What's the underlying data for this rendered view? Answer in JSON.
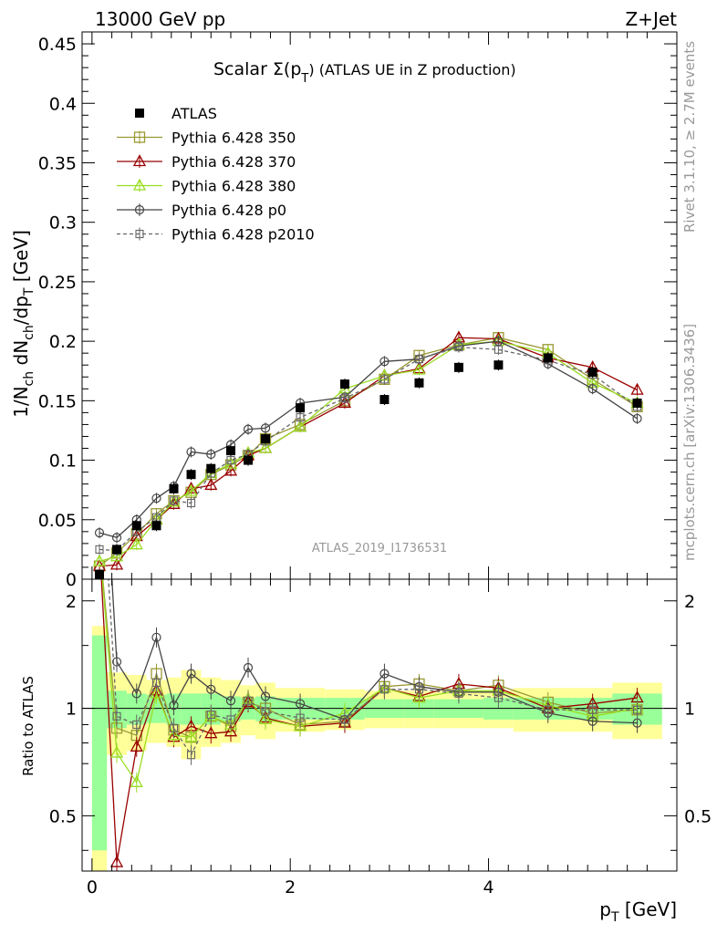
{
  "header": {
    "left": "13000 GeV pp",
    "right": "Z+Jet"
  },
  "side": {
    "rivet": "Rivet 3.1.10, ≥ 2.7M events",
    "mcplots": "mcplots.cern.ch [arXiv:1306.3436]"
  },
  "chart_data": [
    {
      "type": "scatter",
      "title_main": "Scalar Σ(p",
      "title_sub": "T",
      "title_rest": ") (ATLAS UE in Z production)",
      "ylabel": "1/N_ch dN_ch/dp_T [GeV]",
      "xlabel": "p_T [GeV]",
      "analysis_label": "ATLAS_2019_I1736531",
      "xlim": [
        -0.1,
        5.9
      ],
      "ylim": [
        0,
        0.46
      ],
      "yticks": [
        0,
        0.05,
        0.1,
        0.15,
        0.2,
        0.25,
        0.3,
        0.35,
        0.4,
        0.45
      ],
      "ytick_labels": [
        "0",
        "0.05",
        "0.1",
        "0.15",
        "0.2",
        "0.25",
        "0.3",
        "0.35",
        "0.4",
        "0.45"
      ],
      "x": [
        0.075,
        0.25,
        0.45,
        0.65,
        0.825,
        1.0,
        1.2,
        1.4,
        1.575,
        1.75,
        2.1,
        2.55,
        2.95,
        3.3,
        3.7,
        4.1,
        4.6,
        5.05,
        5.5
      ],
      "series": [
        {
          "name": "ATLAS",
          "color": "#000000",
          "marker": "square-filled",
          "line": "none",
          "values": [
            0.004,
            0.025,
            0.045,
            0.045,
            0.076,
            0.088,
            0.093,
            0.108,
            0.1,
            0.118,
            0.144,
            0.164,
            0.151,
            0.165,
            0.178,
            0.18,
            0.186,
            0.174,
            0.148
          ]
        },
        {
          "name": "Pythia 6.428 350",
          "color": "#999933",
          "marker": "square-open",
          "line": "solid",
          "values": [
            0.011,
            0.022,
            0.038,
            0.055,
            0.066,
            0.073,
            0.088,
            0.096,
            0.104,
            0.118,
            0.13,
            0.15,
            0.168,
            0.188,
            0.197,
            0.203,
            0.193,
            0.168,
            0.145
          ]
        },
        {
          "name": "Pythia 6.428 370",
          "color": "#990000",
          "marker": "triangle-open",
          "line": "solid",
          "values": [
            0.011,
            0.012,
            0.036,
            0.05,
            0.063,
            0.076,
            0.079,
            0.091,
            0.104,
            0.11,
            0.128,
            0.148,
            0.171,
            0.177,
            0.203,
            0.202,
            0.186,
            0.178,
            0.159
          ]
        },
        {
          "name": "Pythia 6.428 380",
          "color": "#99dd22",
          "marker": "triangle-open",
          "line": "solid",
          "values": [
            0.015,
            0.019,
            0.029,
            0.05,
            0.065,
            0.074,
            0.089,
            0.097,
            0.106,
            0.11,
            0.128,
            0.16,
            0.171,
            0.176,
            0.197,
            0.2,
            0.19,
            0.165,
            0.148
          ]
        },
        {
          "name": "Pythia 6.428 p0",
          "color": "#444444",
          "marker": "circle-open",
          "line": "solid",
          "values": [
            0.039,
            0.035,
            0.05,
            0.068,
            0.078,
            0.107,
            0.105,
            0.113,
            0.126,
            0.127,
            0.148,
            0.153,
            0.183,
            0.185,
            0.196,
            0.2,
            0.181,
            0.16,
            0.135
          ]
        },
        {
          "name": "Pythia 6.428 p2010",
          "color": "#666666",
          "marker": "square-open-small",
          "line": "dashed",
          "values": [
            0.025,
            0.024,
            0.04,
            0.052,
            0.066,
            0.064,
            0.089,
            0.1,
            0.105,
            0.116,
            0.136,
            0.152,
            0.168,
            0.185,
            0.195,
            0.193,
            0.184,
            0.172,
            0.145
          ]
        }
      ],
      "legend_placement": "top-left"
    },
    {
      "type": "line",
      "ylabel": "Ratio to ATLAS",
      "xlim": [
        -0.1,
        5.9
      ],
      "ylim": [
        0.35,
        2.3
      ],
      "log_y": true,
      "yticks": [
        0.5,
        1,
        2
      ],
      "ytick_labels": [
        "0.5",
        "1",
        "2"
      ],
      "xticks": [
        0,
        2,
        4
      ],
      "xtick_labels": [
        "0",
        "2",
        "4"
      ],
      "x": [
        0.075,
        0.25,
        0.45,
        0.65,
        0.825,
        1.0,
        1.2,
        1.4,
        1.575,
        1.75,
        2.1,
        2.55,
        2.95,
        3.3,
        3.7,
        4.1,
        4.6,
        5.05,
        5.5
      ],
      "band_edges": [
        0,
        0.15,
        0.35,
        0.55,
        0.75,
        0.9,
        1.1,
        1.3,
        1.5,
        1.65,
        1.85,
        2.35,
        2.75,
        3.15,
        3.45,
        3.95,
        4.25,
        4.85,
        5.25,
        5.75
      ],
      "band_green": [
        0.6,
        0.12,
        0.1,
        0.09,
        0.1,
        0.1,
        0.1,
        0.08,
        0.07,
        0.08,
        0.07,
        0.07,
        0.06,
        0.06,
        0.06,
        0.07,
        0.07,
        0.07,
        0.1
      ],
      "band_yellow": [
        0.7,
        0.26,
        0.24,
        0.2,
        0.22,
        0.28,
        0.22,
        0.2,
        0.16,
        0.18,
        0.14,
        0.13,
        0.12,
        0.12,
        0.12,
        0.12,
        0.14,
        0.14,
        0.18
      ],
      "series": [
        {
          "name": "Pythia 6.428 350",
          "color": "#999933",
          "values": [
            2.9,
            0.88,
            0.84,
            1.25,
            0.87,
            0.83,
            0.95,
            0.89,
            1.04,
            1.0,
            0.9,
            0.92,
            1.15,
            1.17,
            1.12,
            1.16,
            1.04,
            0.97,
            0.99
          ]
        },
        {
          "name": "Pythia 6.428 370",
          "color": "#990000",
          "values": [
            2.9,
            0.37,
            0.78,
            1.12,
            0.83,
            0.89,
            0.85,
            0.86,
            1.04,
            0.94,
            0.89,
            0.91,
            1.14,
            1.08,
            1.17,
            1.14,
            1.0,
            1.03,
            1.07
          ]
        },
        {
          "name": "Pythia 6.428 380",
          "color": "#99dd22",
          "values": [
            2.9,
            0.75,
            0.62,
            1.1,
            0.84,
            0.83,
            0.95,
            0.9,
            1.06,
            0.93,
            0.89,
            0.97,
            1.14,
            1.07,
            1.12,
            1.12,
            1.02,
            0.95,
            1.0
          ]
        },
        {
          "name": "Pythia 6.428 p0",
          "color": "#444444",
          "values": [
            9.0,
            1.35,
            1.1,
            1.58,
            1.02,
            1.25,
            1.13,
            1.05,
            1.3,
            1.08,
            1.03,
            0.93,
            1.25,
            1.15,
            1.11,
            1.11,
            0.97,
            0.92,
            0.91
          ]
        },
        {
          "name": "Pythia 6.428 p2010",
          "color": "#666666",
          "values": [
            6.0,
            0.95,
            0.9,
            1.18,
            0.88,
            0.74,
            0.96,
            0.93,
            1.05,
            0.98,
            0.94,
            0.93,
            1.13,
            1.13,
            1.1,
            1.07,
            0.99,
            0.99,
            0.99
          ]
        }
      ]
    }
  ]
}
